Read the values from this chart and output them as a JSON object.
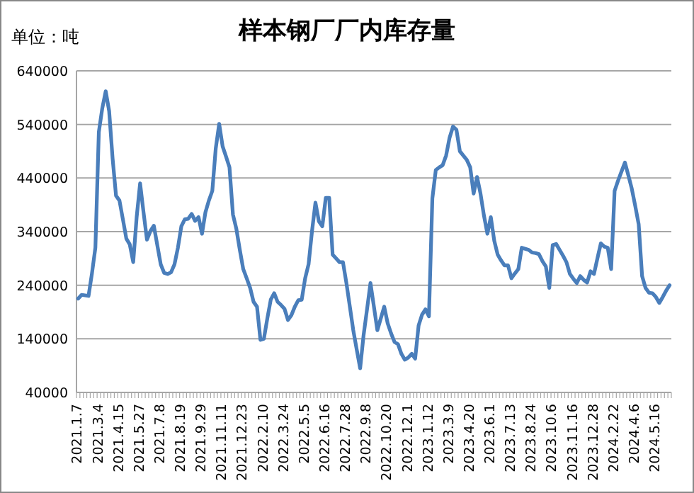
{
  "chart_data": {
    "type": "line",
    "title": "样本钢厂厂内库存量",
    "ylabel": "单位：吨",
    "categories": [
      "2021.1.7",
      null,
      null,
      null,
      null,
      null,
      "2021.3.4",
      null,
      null,
      null,
      null,
      null,
      "2021.4.15",
      null,
      null,
      null,
      null,
      null,
      "2021.5.27",
      null,
      null,
      null,
      null,
      null,
      "2021.7.8",
      null,
      null,
      null,
      null,
      null,
      "2021.8.19",
      null,
      null,
      null,
      null,
      null,
      "2021.9.29",
      null,
      null,
      null,
      null,
      null,
      "2021.11.11",
      null,
      null,
      null,
      null,
      null,
      "2021.12.23",
      null,
      null,
      null,
      null,
      null,
      "2022.2.10",
      null,
      null,
      null,
      null,
      null,
      "2022.3.24",
      null,
      null,
      null,
      null,
      null,
      "2022.5.5",
      null,
      null,
      null,
      null,
      null,
      "2022.6.16",
      null,
      null,
      null,
      null,
      null,
      "2022.7.28",
      null,
      null,
      null,
      null,
      null,
      "2022.9.8",
      null,
      null,
      null,
      null,
      null,
      "2022.10.20",
      null,
      null,
      null,
      null,
      null,
      "2022.12.1",
      null,
      null,
      null,
      null,
      null,
      "2023.1.12",
      null,
      null,
      null,
      null,
      null,
      "2023.3.9",
      null,
      null,
      null,
      null,
      null,
      "2023.4.20",
      null,
      null,
      null,
      null,
      null,
      "2023.6.1",
      null,
      null,
      null,
      null,
      null,
      "2023.7.13",
      null,
      null,
      null,
      null,
      null,
      "2023.8.24",
      null,
      null,
      null,
      null,
      null,
      "2023.10.6",
      null,
      null,
      null,
      null,
      null,
      "2023.11.16",
      null,
      null,
      null,
      null,
      null,
      "2023.12.28",
      null,
      null,
      null,
      null,
      null,
      "2024.2.22",
      null,
      null,
      null,
      null,
      null,
      "2024.4.6",
      null,
      null,
      null,
      null,
      null,
      "2024.5.16",
      null,
      null,
      null,
      null
    ],
    "series": [
      {
        "color": "#4a7ebb",
        "values": [
          215000,
          222000,
          221000,
          220000,
          262000,
          310000,
          526000,
          570000,
          602000,
          565000,
          477000,
          407000,
          398000,
          363000,
          327000,
          316000,
          283000,
          367000,
          430000,
          376000,
          325000,
          341000,
          351000,
          315000,
          279000,
          263000,
          261000,
          264000,
          279000,
          310000,
          350000,
          363000,
          364000,
          373000,
          360000,
          367000,
          336000,
          376000,
          398000,
          416000,
          495000,
          541000,
          499000,
          480000,
          460000,
          372000,
          345000,
          306000,
          270000,
          253000,
          235000,
          209000,
          200000,
          138000,
          140000,
          178000,
          213000,
          225000,
          209000,
          203000,
          196000,
          175000,
          184000,
          200000,
          212000,
          213000,
          253000,
          279000,
          341000,
          394000,
          359000,
          350000,
          403000,
          403000,
          297000,
          290000,
          283000,
          283000,
          244000,
          200000,
          156000,
          120000,
          85000,
          147000,
          195000,
          244000,
          200000,
          156000,
          178000,
          200000,
          169000,
          150000,
          134000,
          130000,
          112000,
          101000,
          105000,
          112000,
          103000,
          165000,
          185000,
          195000,
          182000,
          402000,
          455000,
          460000,
          464000,
          482000,
          515000,
          536000,
          530000,
          490000,
          482000,
          474000,
          460000,
          411000,
          442000,
          411000,
          370000,
          336000,
          367000,
          323000,
          297000,
          286000,
          277000,
          277000,
          253000,
          262000,
          270000,
          310000,
          308000,
          306000,
          301000,
          300000,
          298000,
          285000,
          275000,
          235000,
          315000,
          317000,
          306000,
          295000,
          283000,
          261000,
          252000,
          244000,
          257000,
          250000,
          245000,
          266000,
          261000,
          290000,
          318000,
          312000,
          310000,
          270000,
          416000,
          435000,
          452000,
          469000,
          445000,
          420000,
          388000,
          354000,
          257000,
          235000,
          226000,
          225000,
          218000,
          207000,
          218000,
          230000,
          240000
        ]
      }
    ],
    "ylim": [
      40000,
      640000
    ],
    "yticks": [
      40000,
      140000,
      240000,
      340000,
      440000,
      540000,
      640000
    ],
    "grid": "y"
  }
}
